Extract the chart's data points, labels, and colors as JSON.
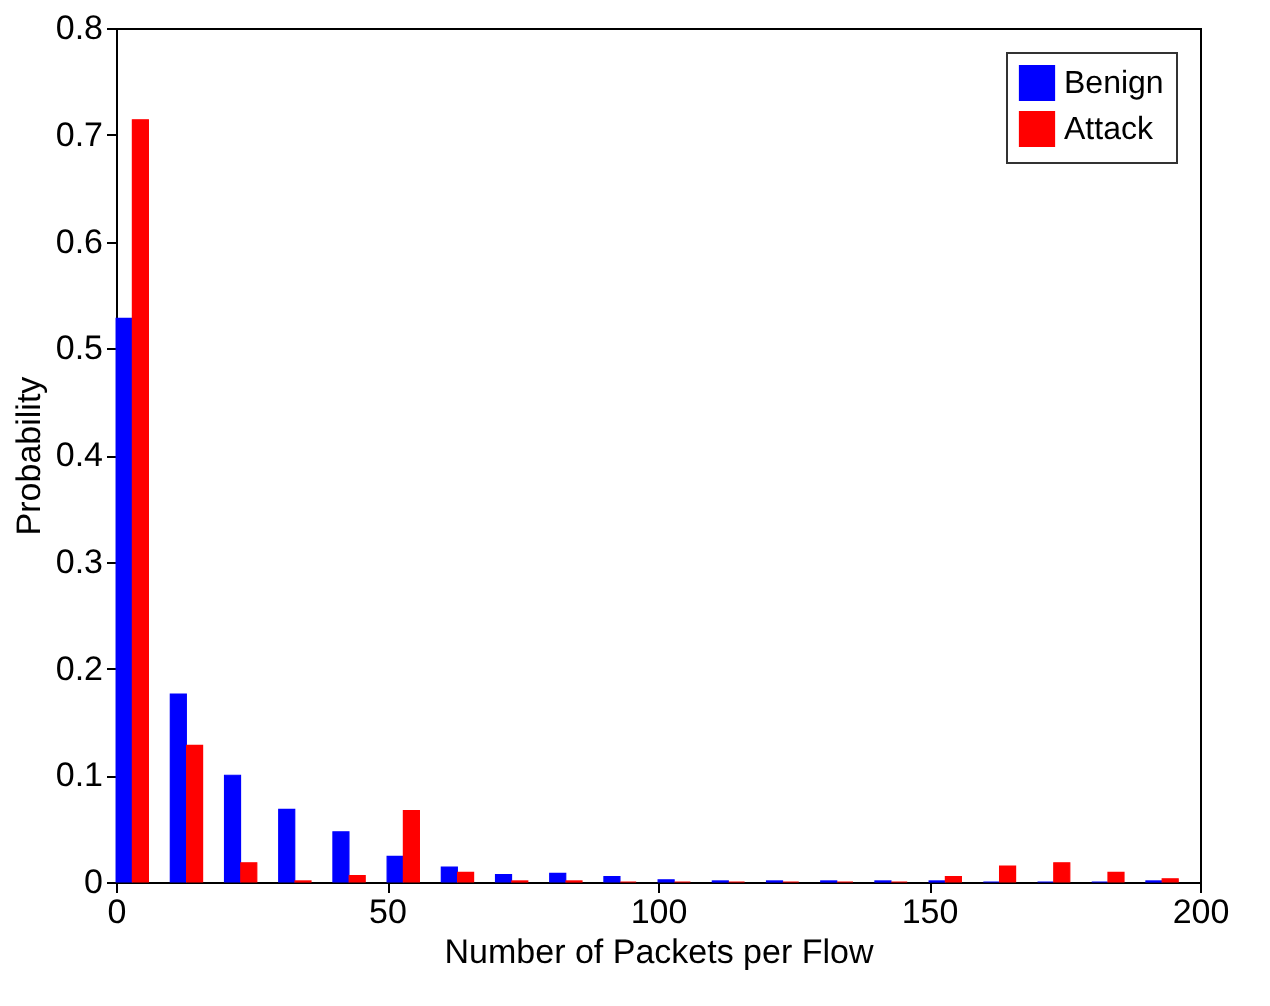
{
  "chart_data": {
    "type": "bar",
    "xlabel": "Number of Packets per Flow",
    "ylabel": "Probability",
    "xlim": [
      0,
      200
    ],
    "xticks": [
      0,
      50,
      100,
      150,
      200
    ],
    "ylim": [
      0,
      0.8
    ],
    "yticks": [
      0,
      0.1,
      0.2,
      0.3,
      0.4,
      0.5,
      0.6,
      0.7,
      0.8
    ],
    "grid": false,
    "legend": "top right",
    "series": [
      {
        "name": "Benign",
        "color": "#0000ff",
        "x": [
          1.5,
          11.5,
          21.5,
          31.5,
          41.5,
          51.5,
          61.5,
          71.5,
          81.5,
          91.5,
          101.5,
          111.5,
          121.5,
          131.5,
          141.5,
          151.5,
          161.5,
          171.5,
          181.5,
          191.5
        ],
        "values": [
          0.528,
          0.176,
          0.1,
          0.068,
          0.047,
          0.024,
          0.014,
          0.007,
          0.008,
          0.005,
          0.002,
          0.001,
          0.001,
          0.001,
          0.001,
          0.001,
          0,
          0,
          0,
          0.001
        ]
      },
      {
        "name": "Attack",
        "color": "#ff0000",
        "x": [
          4.5,
          14.5,
          24.5,
          34.5,
          44.5,
          54.5,
          64.5,
          74.5,
          84.5,
          94.5,
          104.5,
          114.5,
          124.5,
          134.5,
          144.5,
          154.5,
          164.5,
          174.5,
          184.5,
          194.5
        ],
        "values": [
          0.714,
          0.128,
          0.018,
          0.001,
          0.006,
          0.067,
          0.009,
          0.001,
          0.001,
          0,
          0,
          0,
          0,
          0,
          0,
          0.005,
          0.015,
          0.018,
          0.009,
          0.003
        ]
      }
    ]
  }
}
